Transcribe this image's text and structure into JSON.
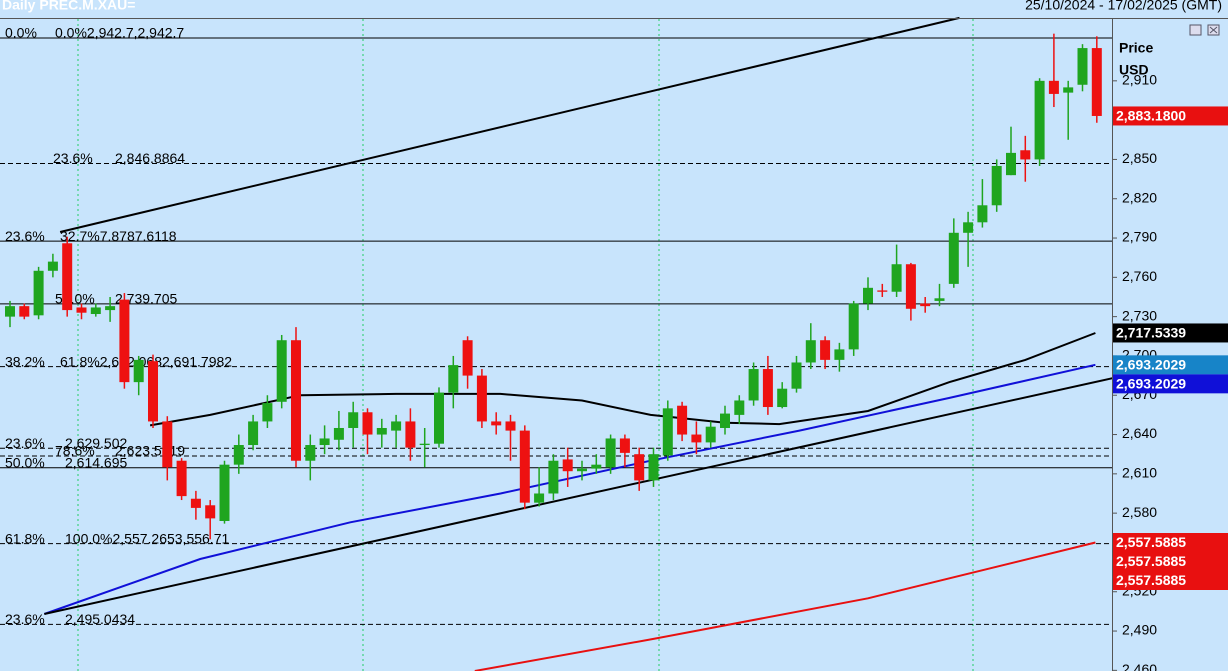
{
  "chart_data": {
    "type": "candlestick",
    "title": "Daily PREC.M.XAU=",
    "date_range": "25/10/2024 - 17/02/2025 (GMT)",
    "y_axis_title": "Price",
    "y_axis_unit": "USD",
    "ylim": [
      2459.5,
      2971.7
    ],
    "yticks": [
      {
        "value": 2460,
        "label": "2,460"
      },
      {
        "value": 2490,
        "label": "2,490"
      },
      {
        "value": 2520,
        "label": "2,520"
      },
      {
        "value": 2550,
        "label": "2,550"
      },
      {
        "value": 2580,
        "label": "2,580"
      },
      {
        "value": 2610,
        "label": "2,610"
      },
      {
        "value": 2640,
        "label": "2,640"
      },
      {
        "value": 2670,
        "label": "2,670"
      },
      {
        "value": 2700,
        "label": "2,700"
      },
      {
        "value": 2730,
        "label": "2,730"
      },
      {
        "value": 2760,
        "label": "2,760"
      },
      {
        "value": 2790,
        "label": "2,790"
      },
      {
        "value": 2820,
        "label": "2,820"
      },
      {
        "value": 2850,
        "label": "2,850"
      },
      {
        "value": 2910,
        "label": "2,910"
      }
    ],
    "up_color": "#1fa51f",
    "down_color": "#ee1111",
    "open": [
      2730,
      2738,
      2731,
      2765,
      2786,
      2737,
      2732,
      2735,
      2743,
      2680,
      2696,
      2650,
      2620,
      2591,
      2586,
      2574,
      2617,
      2632,
      2650,
      2665,
      2712,
      2620,
      2632,
      2636,
      2645,
      2657,
      2640,
      2643,
      2650,
      2632,
      2633,
      2672,
      2712,
      2685,
      2650,
      2650,
      2643,
      2588,
      2595,
      2621,
      2612,
      2614,
      2615,
      2637,
      2625,
      2605,
      2624,
      2662,
      2640,
      2634,
      2645,
      2655,
      2666,
      2690,
      2661,
      2675,
      2695,
      2712,
      2697,
      2705,
      2740,
      2750,
      2749,
      2770,
      2740,
      2742,
      2755,
      2794,
      2802,
      2815,
      2838,
      2857,
      2850,
      2910,
      2901,
      2907,
      2935
    ],
    "high": [
      2742,
      2740,
      2768,
      2778,
      2791,
      2740,
      2740,
      2745,
      2748,
      2700,
      2701,
      2654,
      2622,
      2597,
      2590,
      2620,
      2640,
      2655,
      2670,
      2716,
      2722,
      2640,
      2647,
      2658,
      2665,
      2660,
      2652,
      2655,
      2660,
      2645,
      2676,
      2700,
      2715,
      2690,
      2657,
      2655,
      2647,
      2615,
      2625,
      2630,
      2620,
      2625,
      2640,
      2640,
      2630,
      2630,
      2666,
      2665,
      2650,
      2650,
      2662,
      2670,
      2695,
      2700,
      2680,
      2700,
      2725,
      2715,
      2710,
      2742,
      2760,
      2755,
      2785,
      2771,
      2745,
      2755,
      2805,
      2810,
      2835,
      2850,
      2875,
      2868,
      2912,
      2946,
      2910,
      2938,
      2944
    ],
    "low": [
      2722,
      2728,
      2728,
      2760,
      2730,
      2728,
      2730,
      2726,
      2675,
      2670,
      2645,
      2605,
      2590,
      2575,
      2560,
      2572,
      2610,
      2628,
      2645,
      2660,
      2615,
      2605,
      2625,
      2628,
      2630,
      2625,
      2630,
      2630,
      2620,
      2615,
      2630,
      2660,
      2675,
      2645,
      2640,
      2620,
      2583,
      2585,
      2590,
      2600,
      2605,
      2610,
      2610,
      2615,
      2597,
      2600,
      2620,
      2635,
      2625,
      2630,
      2640,
      2648,
      2662,
      2655,
      2660,
      2672,
      2690,
      2690,
      2688,
      2700,
      2735,
      2745,
      2745,
      2727,
      2733,
      2738,
      2752,
      2768,
      2798,
      2810,
      2838,
      2833,
      2845,
      2890,
      2865,
      2902,
      2878
    ],
    "close": [
      2738,
      2730,
      2765,
      2772,
      2735,
      2733,
      2737,
      2738,
      2680,
      2697,
      2650,
      2615,
      2593,
      2584,
      2576,
      2617,
      2632,
      2650,
      2664,
      2712,
      2620,
      2632,
      2637,
      2645,
      2657,
      2640,
      2645,
      2650,
      2630,
      2633,
      2672,
      2693,
      2685,
      2650,
      2647,
      2643,
      2588,
      2595,
      2620,
      2612,
      2614,
      2617,
      2637,
      2626,
      2605,
      2625,
      2660,
      2640,
      2634,
      2646,
      2656,
      2666,
      2690,
      2661,
      2675,
      2695,
      2712,
      2697,
      2705,
      2740,
      2752,
      2749,
      2770,
      2736,
      2738,
      2744,
      2794,
      2802,
      2815,
      2845,
      2855,
      2850,
      2910,
      2900,
      2905,
      2935,
      2883.18
    ],
    "overlays": [
      {
        "color": "#000000",
        "x": [
          9.8,
          14,
          20.3,
          27,
          34.3,
          40,
          44.8,
          50,
          53.8,
          60,
          65.7,
          71,
          75.9
        ],
        "values": [
          2647,
          2655,
          2670,
          2671,
          2671,
          2666,
          2655,
          2649,
          2648,
          2658,
          2680,
          2697,
          2717.5339
        ]
      },
      {
        "color": "#1010d8",
        "x": [
          2.4,
          13.3,
          23.8,
          34.3,
          44.8,
          55.2,
          65.7,
          75.9
        ],
        "values": [
          2503,
          2545,
          2573,
          2595,
          2620,
          2643,
          2668,
          2693.2029
        ]
      },
      {
        "color": "#e81010",
        "x": [
          32.5,
          45,
          60,
          75.9
        ],
        "values": [
          2459.5,
          2484,
          2515,
          2557.5885
        ]
      },
      {
        "color": "#000000",
        "x": [
          3.5,
          66.4
        ],
        "values": [
          2794.6,
          2958
        ]
      },
      {
        "color": "#000000",
        "x": [
          2.4,
          77.1
        ],
        "values": [
          2503,
          2683
        ]
      }
    ],
    "fib_levels": [
      {
        "value": 2942.7,
        "pct": "0.0%",
        "label": "0.0%2,942.7,2,942.7",
        "style": "solid"
      },
      {
        "value": 2846.8864,
        "pct": "23.6%",
        "label": "2,846.8864",
        "style": "dashed"
      },
      {
        "value": 2787.6118,
        "pct": "23.6%",
        "label": "32.7%7.8787.6118",
        "style": "solid"
      },
      {
        "value": 2739.705,
        "pct": "50.0%",
        "label": "2,739.705",
        "style": "solid"
      },
      {
        "value": 2691.7982,
        "pct": "38.2%",
        "label": "61.8%2,692.0682,691.7982",
        "style": "dashed"
      },
      {
        "value": 2629.502,
        "pct": "23.6%",
        "label": "2,629.502",
        "style": "dashed"
      },
      {
        "value": 2623.5919,
        "pct": "78.6%",
        "label": "2,623.5919",
        "style": "dashed"
      },
      {
        "value": 2614.695,
        "pct": "50.0%",
        "label": "2,614.695",
        "style": "solid"
      },
      {
        "value": 2556.71,
        "pct": "61.8%",
        "label": "100.0%2,557.2653,556.71",
        "style": "dashed"
      },
      {
        "value": 2495.0434,
        "pct": "23.6%",
        "label": "2,495.0434",
        "style": "dashed"
      }
    ],
    "price_tags": [
      {
        "value": 2883.18,
        "label": "2,883.1800",
        "color": "#e81010",
        "text_color": "#ffffff"
      },
      {
        "value": 2717.5339,
        "label": "2,717.5339",
        "color": "#000000",
        "text_color": "#ffffff"
      },
      {
        "value": 2693.2029,
        "label": "2,693.2029",
        "color": "#1784c8",
        "text_color": "#ffffff"
      },
      {
        "value": 2693.2029,
        "label": "2,693.2029",
        "color": "#1010d8",
        "text_color": "#ffffff"
      },
      {
        "value": 2557.5885,
        "label": "2,557.5885",
        "color": "#e81010",
        "text_color": "#ffffff"
      },
      {
        "value": 2557.5885,
        "label": "2,557.5885",
        "color": "#e81010",
        "text_color": "#ffffff"
      },
      {
        "value": 2557.5885,
        "label": "2,557.5885",
        "color": "#e81010",
        "text_color": "#ffffff"
      }
    ]
  }
}
